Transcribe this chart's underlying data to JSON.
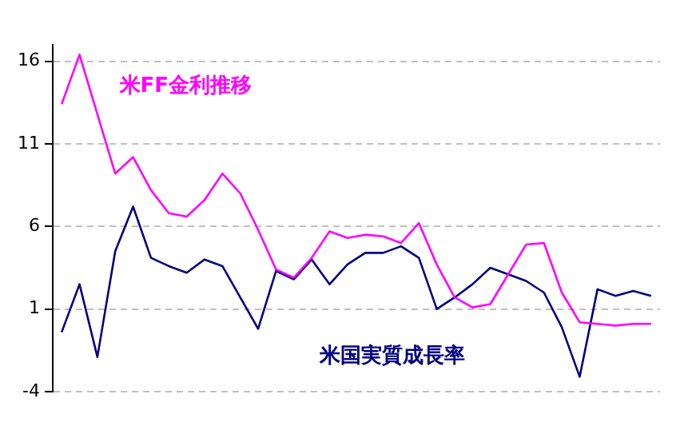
{
  "chart_data": {
    "type": "line",
    "categories": [
      null,
      null,
      null,
      null,
      null,
      null,
      null,
      null,
      null,
      null,
      null,
      null,
      null,
      null,
      null,
      null,
      null,
      null,
      null,
      null,
      null,
      null,
      null,
      null,
      null,
      null,
      null,
      null,
      null,
      null,
      null,
      null,
      null,
      null
    ],
    "series": [
      {
        "name": "米FF金利推移",
        "color": "#ff00ff",
        "values": [
          13.4,
          16.4,
          12.8,
          9.2,
          10.2,
          8.2,
          6.8,
          6.6,
          7.6,
          9.2,
          8.0,
          5.8,
          3.4,
          2.9,
          4.1,
          5.7,
          5.3,
          5.5,
          5.4,
          5.0,
          6.2,
          3.7,
          1.7,
          1.1,
          1.3,
          3.1,
          4.9,
          5.0,
          2.0,
          0.2,
          0.1,
          0.0,
          0.1,
          0.1
        ]
      },
      {
        "name": "米国実質成長率",
        "color": "#000080",
        "values": [
          -0.4,
          2.5,
          -1.9,
          4.5,
          7.2,
          4.1,
          3.6,
          3.2,
          4.0,
          3.6,
          1.7,
          -0.2,
          3.3,
          2.8,
          4.0,
          2.5,
          3.7,
          4.4,
          4.4,
          4.8,
          4.1,
          1.0,
          1.7,
          2.5,
          3.5,
          3.1,
          2.7,
          2.0,
          -0.1,
          -3.1,
          2.2,
          1.8,
          2.1,
          1.8
        ]
      }
    ],
    "ylim": [
      -4,
      17
    ],
    "yticks": [
      16,
      11,
      6,
      1,
      -4
    ],
    "grid": "y",
    "legend": false,
    "marker": "none",
    "line_style": "solid"
  }
}
